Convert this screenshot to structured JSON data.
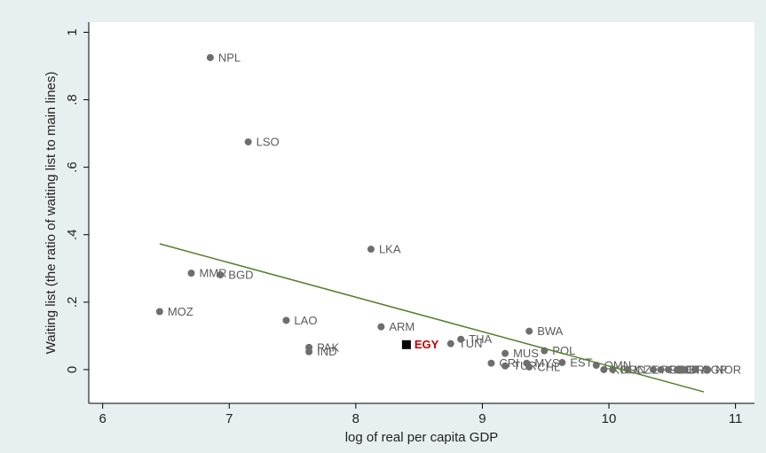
{
  "chart_data": {
    "type": "scatter",
    "xlabel": "log of real per capita GDP",
    "ylabel": "Waiting list (the ratio of waiting list to main lines)",
    "xlim": [
      5.89,
      11.15
    ],
    "ylim": [
      -0.1,
      1.03
    ],
    "xticks": [
      6,
      7,
      8,
      9,
      10,
      11
    ],
    "yticks": [
      0,
      {
        "value": 0.2,
        "label": ".2"
      },
      {
        "value": 0.4,
        "label": ".4"
      },
      {
        "value": 0.6,
        "label": ".6"
      },
      {
        "value": 0.8,
        "label": ".8"
      },
      1
    ],
    "color": "#6e6e6e",
    "label_color": "#5a5a5a",
    "points": [
      {
        "label": "NPL",
        "x": 6.85,
        "y": 0.925
      },
      {
        "label": "LSO",
        "x": 7.15,
        "y": 0.675
      },
      {
        "label": "LKA",
        "x": 8.12,
        "y": 0.357
      },
      {
        "label": "MMR",
        "x": 6.7,
        "y": 0.286
      },
      {
        "label": "BGD",
        "x": 6.93,
        "y": 0.281
      },
      {
        "label": "MOZ",
        "x": 6.45,
        "y": 0.172
      },
      {
        "label": "LAO",
        "x": 7.45,
        "y": 0.146
      },
      {
        "label": "ARM",
        "x": 8.2,
        "y": 0.127
      },
      {
        "label": "PAK",
        "x": 7.63,
        "y": 0.066
      },
      {
        "label": "IND",
        "x": 7.63,
        "y": 0.053
      },
      {
        "label": "EGY",
        "x": 8.4,
        "y": 0.074,
        "marker": "square",
        "color": "#000000",
        "label_color": "#c00000"
      },
      {
        "label": "TUN",
        "x": 8.75,
        "y": 0.077
      },
      {
        "label": "THA",
        "x": 8.83,
        "y": 0.09
      },
      {
        "label": "BWA",
        "x": 9.37,
        "y": 0.114
      },
      {
        "label": "POL",
        "x": 9.49,
        "y": 0.056
      },
      {
        "label": "MUS",
        "x": 9.18,
        "y": 0.048
      },
      {
        "label": "CRI",
        "x": 9.07,
        "y": 0.019
      },
      {
        "label": "TUR",
        "x": 9.18,
        "y": 0.011
      },
      {
        "label": "MYS",
        "x": 9.35,
        "y": 0.019
      },
      {
        "label": "CHL",
        "x": 9.37,
        "y": 0.008
      },
      {
        "label": "EST",
        "x": 9.63,
        "y": 0.021
      },
      {
        "label": "OMN",
        "x": 9.9,
        "y": 0.013
      },
      {
        "label": "KOR",
        "x": 9.96,
        "y": 0
      },
      {
        "label": "HUN",
        "x": 10.03,
        "y": 0
      },
      {
        "label": "CZE",
        "x": 10.15,
        "y": 0
      },
      {
        "label": "PRT",
        "x": 10.35,
        "y": 0
      },
      {
        "label": "GRC",
        "x": 10.41,
        "y": 0
      },
      {
        "label": "ESP",
        "x": 10.47,
        "y": 0
      },
      {
        "label": "ISR",
        "x": 10.54,
        "y": 0
      },
      {
        "label": "ITA",
        "x": 10.59,
        "y": 0
      },
      {
        "label": "SGP",
        "x": 10.68,
        "y": 0
      },
      {
        "label": "NOR",
        "x": 10.78,
        "y": 0
      }
    ],
    "fit_line": {
      "x": [
        6.45,
        10.75
      ],
      "y": [
        0.373,
        -0.066
      ],
      "color": "#557f2b"
    }
  }
}
